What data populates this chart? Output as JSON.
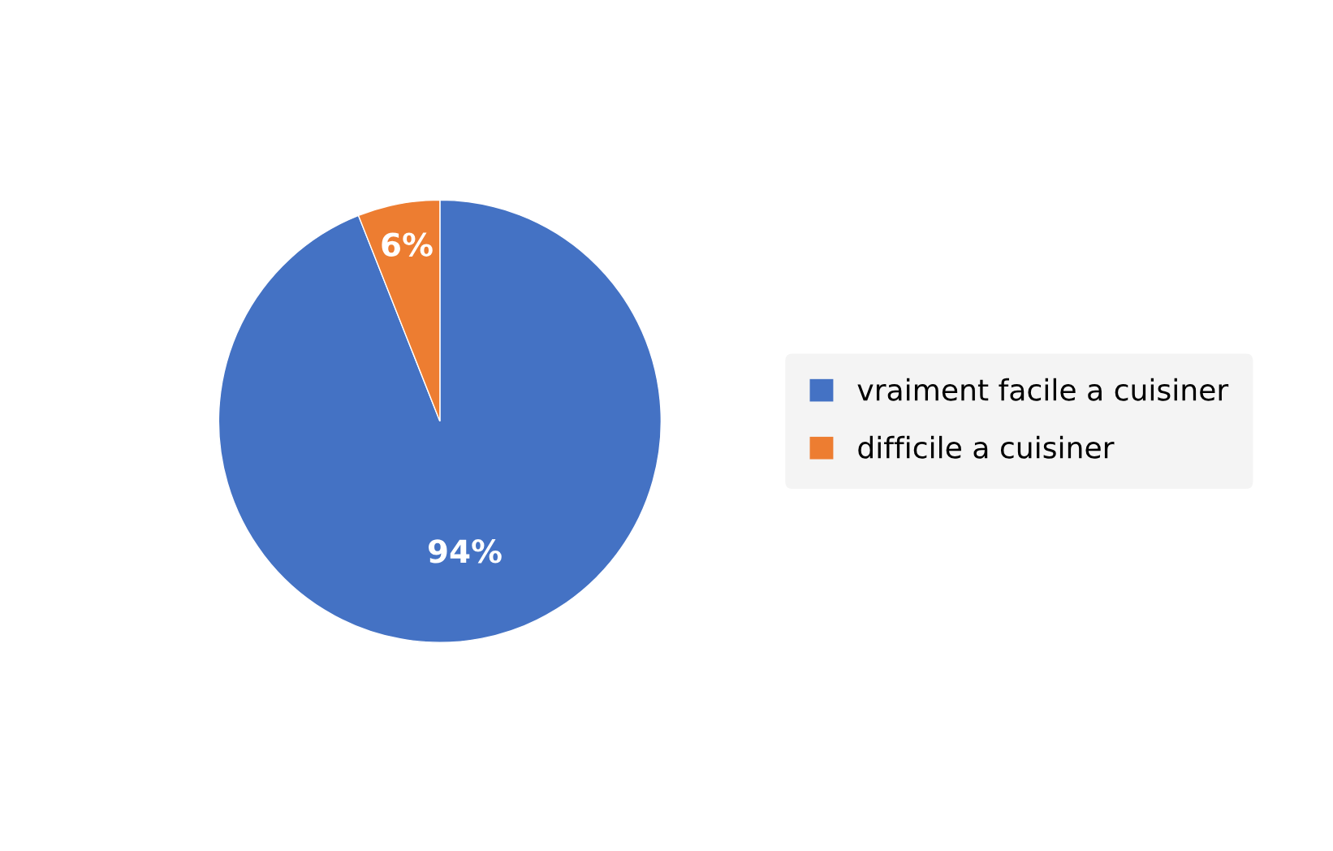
{
  "chart_data": {
    "type": "pie",
    "categories": [
      "vraiment facile a cuisiner",
      "difficile a cuisiner"
    ],
    "values": [
      94,
      6
    ],
    "value_labels": [
      "94%",
      "6%"
    ],
    "colors": [
      "#4472c4",
      "#ed7d31"
    ],
    "legend": "right"
  }
}
